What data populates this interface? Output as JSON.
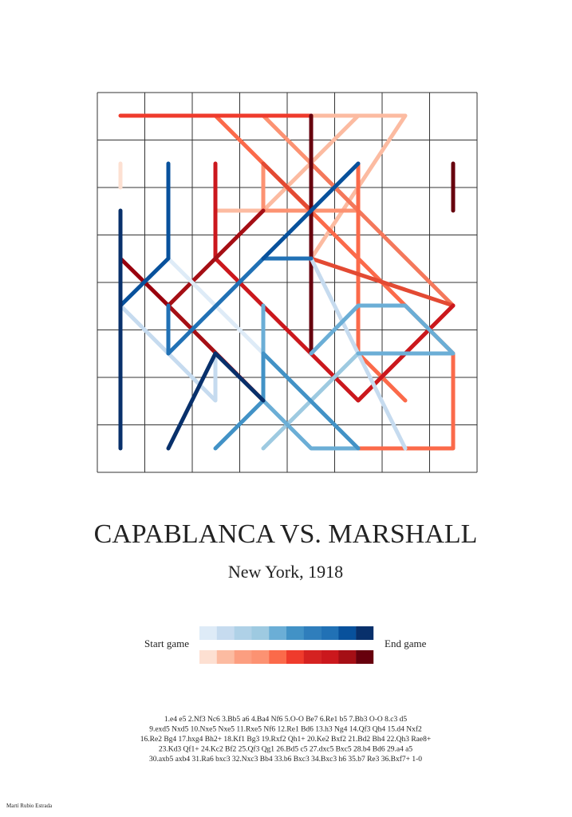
{
  "title": "CAPABLANCA VS. MARSHALL",
  "subtitle": "New York, 1918",
  "legend": {
    "start": "Start game",
    "end": "End game"
  },
  "moves": [
    "1.e4 e5 2.Nf3 Nc6 3.Bb5 a6 4.Ba4 Nf6 5.O-O Be7 6.Re1 b5 7.Bb3 O-O 8.c3 d5",
    "9.exd5 Nxd5 10.Nxe5 Nxe5 11.Rxe5 Nf6 12.Re1 Bd6 13.h3 Ng4 14.Qf3 Qh4 15.d4 Nxf2",
    "16.Re2 Bg4 17.hxg4 Bh2+ 18.Kf1 Bg3 19.Rxf2 Qh1+ 20.Ke2 Bxf2 21.Bd2 Bh4 22.Qh3 Rae8+",
    "23.Kd3 Qf1+ 24.Kc2 Bf2 25.Qf3 Qg1 26.Bd5 c5 27.dxc5 Bxc5 28.b4 Bd6 29.a4 a5",
    "30.axb5 axb4 31.Ra6 bxc3 32.Nxc3 Bb4 33.b6 Bxc3 34.Bxc3 h6 35.b7 Re3 36.Bxf7+ 1-0"
  ],
  "author": "Martí Rubio Estrada"
}
